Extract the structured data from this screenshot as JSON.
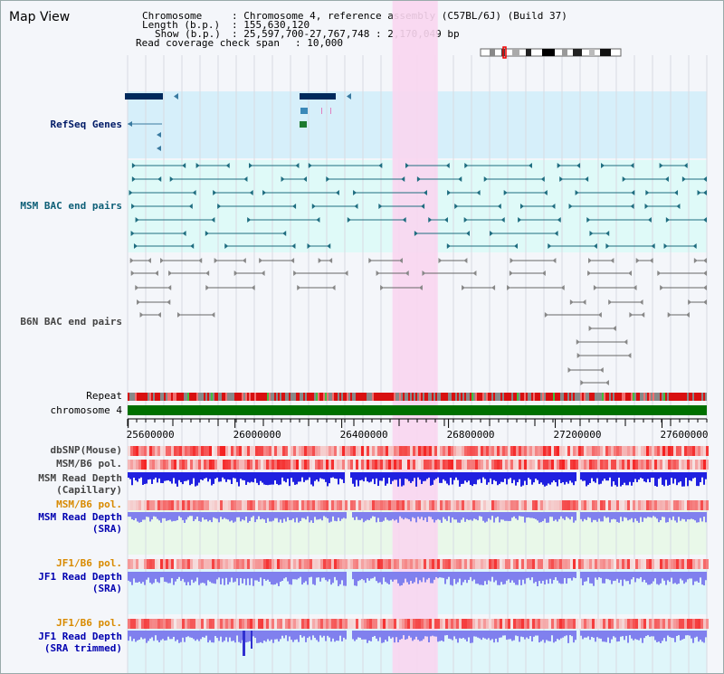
{
  "view": {
    "title": "Map View"
  },
  "info": {
    "chromosome_label": "Chromosome",
    "chromosome_value": "Chromosome 4, reference assembly (C57BL/6J) (Build 37)",
    "length_label": "Length (b.p.)",
    "length_value": "155,630,120",
    "show_label": "Show (b.p.)",
    "show_value": "25,597,700-27,767,748 : 2,170,049 bp",
    "coverage_label": "Read coverage check span",
    "coverage_value": "10,000"
  },
  "tracks": {
    "refseq": "RefSeq Genes",
    "msm_bac": "MSM BAC end pairs",
    "b6n_bac": "B6N BAC end pairs",
    "repeat": "Repeat",
    "chromosome": "chromosome 4",
    "dbsnp": "dbSNP(Mouse)",
    "msm_b6_pol_1": "MSM/B6 pol.",
    "msm_depth_cap_1": "MSM Read Depth",
    "msm_depth_cap_2": "(Capillary)",
    "msm_b6_pol_2": "MSM/B6 pol.",
    "msm_depth_sra_1": "MSM Read Depth",
    "msm_depth_sra_2": "(SRA)",
    "jf1_b6_pol_1": "JF1/B6 pol.",
    "jf1_depth_sra_1": "JF1 Read Depth",
    "jf1_depth_sra_2": "(SRA)",
    "jf1_b6_pol_2": "JF1/B6 pol.",
    "jf1_depth_trim_1": "JF1 Read Depth",
    "jf1_depth_trim_2": "(SRA trimmed)"
  },
  "axis": {
    "ticks": [
      25600000,
      26000000,
      26400000,
      26800000,
      27200000,
      27600000
    ],
    "tick_labels": [
      "25600000",
      "26000000",
      "26400000",
      "26800000",
      "27200000",
      "27600000"
    ],
    "start": 25597700,
    "end": 27767748
  },
  "colors": {
    "refseq_bg": "#d6effa",
    "msm_bg": "#dffaf8",
    "highlight": "#f9d6f0",
    "chrom": "#007000",
    "gene": "#002a5c",
    "msm_feature": "#1f6d80",
    "b6n_feature": "#666666",
    "depth_dark": "#2020e0",
    "depth_light": "#8080ee"
  },
  "highlight_region": [
    26590000,
    26760000
  ]
}
